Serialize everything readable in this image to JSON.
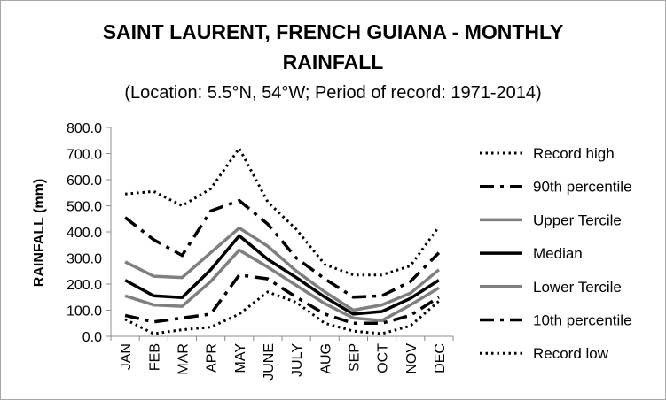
{
  "chart_data": {
    "type": "line",
    "title": "SAINT LAURENT, FRENCH GUIANA - MONTHLY RAINFALL",
    "title_lines": [
      "SAINT LAURENT, FRENCH GUIANA - MONTHLY",
      "RAINFALL"
    ],
    "subtitle": "(Location: 5.5°N, 54°W; Period of record: 1971-2014)",
    "xlabel": "",
    "ylabel": "RAINFALL (mm)",
    "ylim": [
      0,
      800
    ],
    "yticks": [
      "0.0",
      "100.0",
      "200.0",
      "300.0",
      "400.0",
      "500.0",
      "600.0",
      "700.0",
      "800.0"
    ],
    "categories": [
      "JAN",
      "FEB",
      "MAR",
      "APR",
      "MAY",
      "JUNE",
      "JULY",
      "AUG",
      "SEP",
      "OCT",
      "NOV",
      "DEC"
    ],
    "grid": "none",
    "legend_position": "right",
    "series": [
      {
        "name": "Record high",
        "style": "dotted",
        "color": "#000000",
        "values": [
          545,
          555,
          500,
          565,
          720,
          515,
          410,
          275,
          235,
          235,
          270,
          420
        ]
      },
      {
        "name": "90th percentile",
        "style": "dashdot",
        "color": "#000000",
        "values": [
          455,
          370,
          310,
          480,
          520,
          430,
          300,
          220,
          150,
          155,
          210,
          320
        ]
      },
      {
        "name": "Upper Tercile",
        "style": "solid",
        "color": "#7f7f7f",
        "values": [
          285,
          230,
          225,
          320,
          415,
          345,
          250,
          170,
          100,
          120,
          165,
          255
        ]
      },
      {
        "name": "Median",
        "style": "solid",
        "color": "#000000",
        "values": [
          215,
          155,
          148,
          255,
          385,
          295,
          225,
          150,
          85,
          95,
          145,
          215
        ]
      },
      {
        "name": "Lower Tercile",
        "style": "solid",
        "color": "#7f7f7f",
        "values": [
          155,
          120,
          115,
          210,
          330,
          265,
          195,
          125,
          70,
          60,
          120,
          185
        ]
      },
      {
        "name": "10th percentile",
        "style": "dashdot",
        "color": "#000000",
        "values": [
          80,
          55,
          70,
          85,
          235,
          220,
          150,
          85,
          50,
          50,
          80,
          150
        ]
      },
      {
        "name": "Record low",
        "style": "dotted",
        "color": "#000000",
        "values": [
          65,
          10,
          25,
          35,
          85,
          170,
          130,
          50,
          20,
          10,
          40,
          135
        ]
      }
    ]
  }
}
